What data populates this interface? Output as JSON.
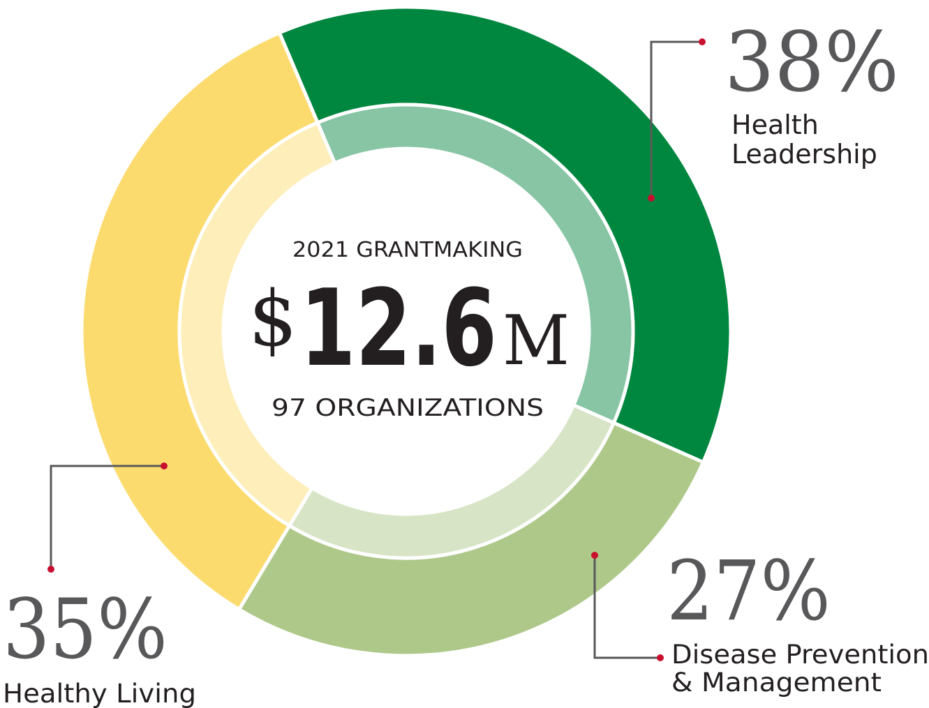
{
  "chart_data": {
    "type": "pie",
    "center": {
      "title": "2021 GRANTMAKING",
      "currency_symbol": "$",
      "amount": "12.6",
      "unit": "M",
      "subtitle": "97 ORGANIZATIONS"
    },
    "slices": [
      {
        "label_lines": [
          "Health",
          "Leadership"
        ],
        "percent_text": "38%",
        "value": 38,
        "color": "#00873f",
        "inner_color": "#87c5a4"
      },
      {
        "label_lines": [
          "Disease Prevention",
          "& Management"
        ],
        "percent_text": "27%",
        "value": 27,
        "color": "#aec88a",
        "inner_color": "#d8e4c6"
      },
      {
        "label_lines": [
          "Healthy Living"
        ],
        "percent_text": "35%",
        "value": 35,
        "color": "#fcdb6e",
        "inner_color": "#fdeeba"
      }
    ],
    "leader_line_color": "#58585a",
    "dot_color": "#c8102e"
  }
}
